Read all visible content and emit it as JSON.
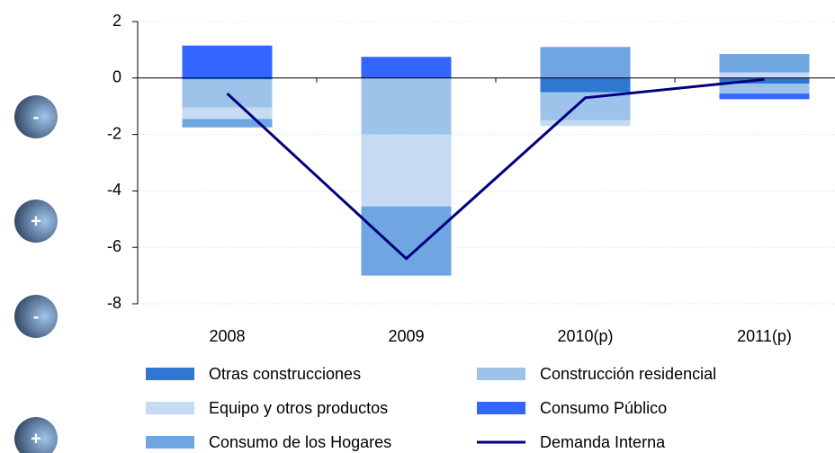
{
  "buttons": [
    "-",
    "+",
    "-",
    "+"
  ],
  "chart_data": {
    "type": "bar",
    "stacked": true,
    "categories": [
      "2008",
      "2009",
      "2010(p)",
      "2011(p)"
    ],
    "ylim": [
      -8,
      2
    ],
    "yticks": [
      -8,
      -6,
      -4,
      -2,
      0,
      2
    ],
    "grid": true,
    "series": [
      {
        "name": "Otras construcciones",
        "color": "#2f78d2",
        "values": [
          -0.05,
          0,
          -0.5,
          -0.2
        ]
      },
      {
        "name": "Construcción residencial",
        "color": "#9ec3ea",
        "values": [
          -1.0,
          -2.0,
          -1.0,
          -0.35
        ]
      },
      {
        "name": "Equipo y otros productos",
        "color": "#c6dbf3",
        "values": [
          -0.4,
          -2.55,
          -0.2,
          0.2
        ]
      },
      {
        "name": "Consumo Público",
        "color": "#3366ff",
        "values": [
          1.15,
          0.75,
          0,
          -0.2
        ]
      },
      {
        "name": "Consumo de los Hogares",
        "color": "#6fa5e0",
        "values": [
          -0.3,
          -2.45,
          1.1,
          0.65
        ]
      },
      {
        "name": "Demanda Interna",
        "type": "line",
        "color": "#000080",
        "values": [
          -0.55,
          -6.4,
          -0.7,
          -0.05
        ]
      }
    ]
  }
}
